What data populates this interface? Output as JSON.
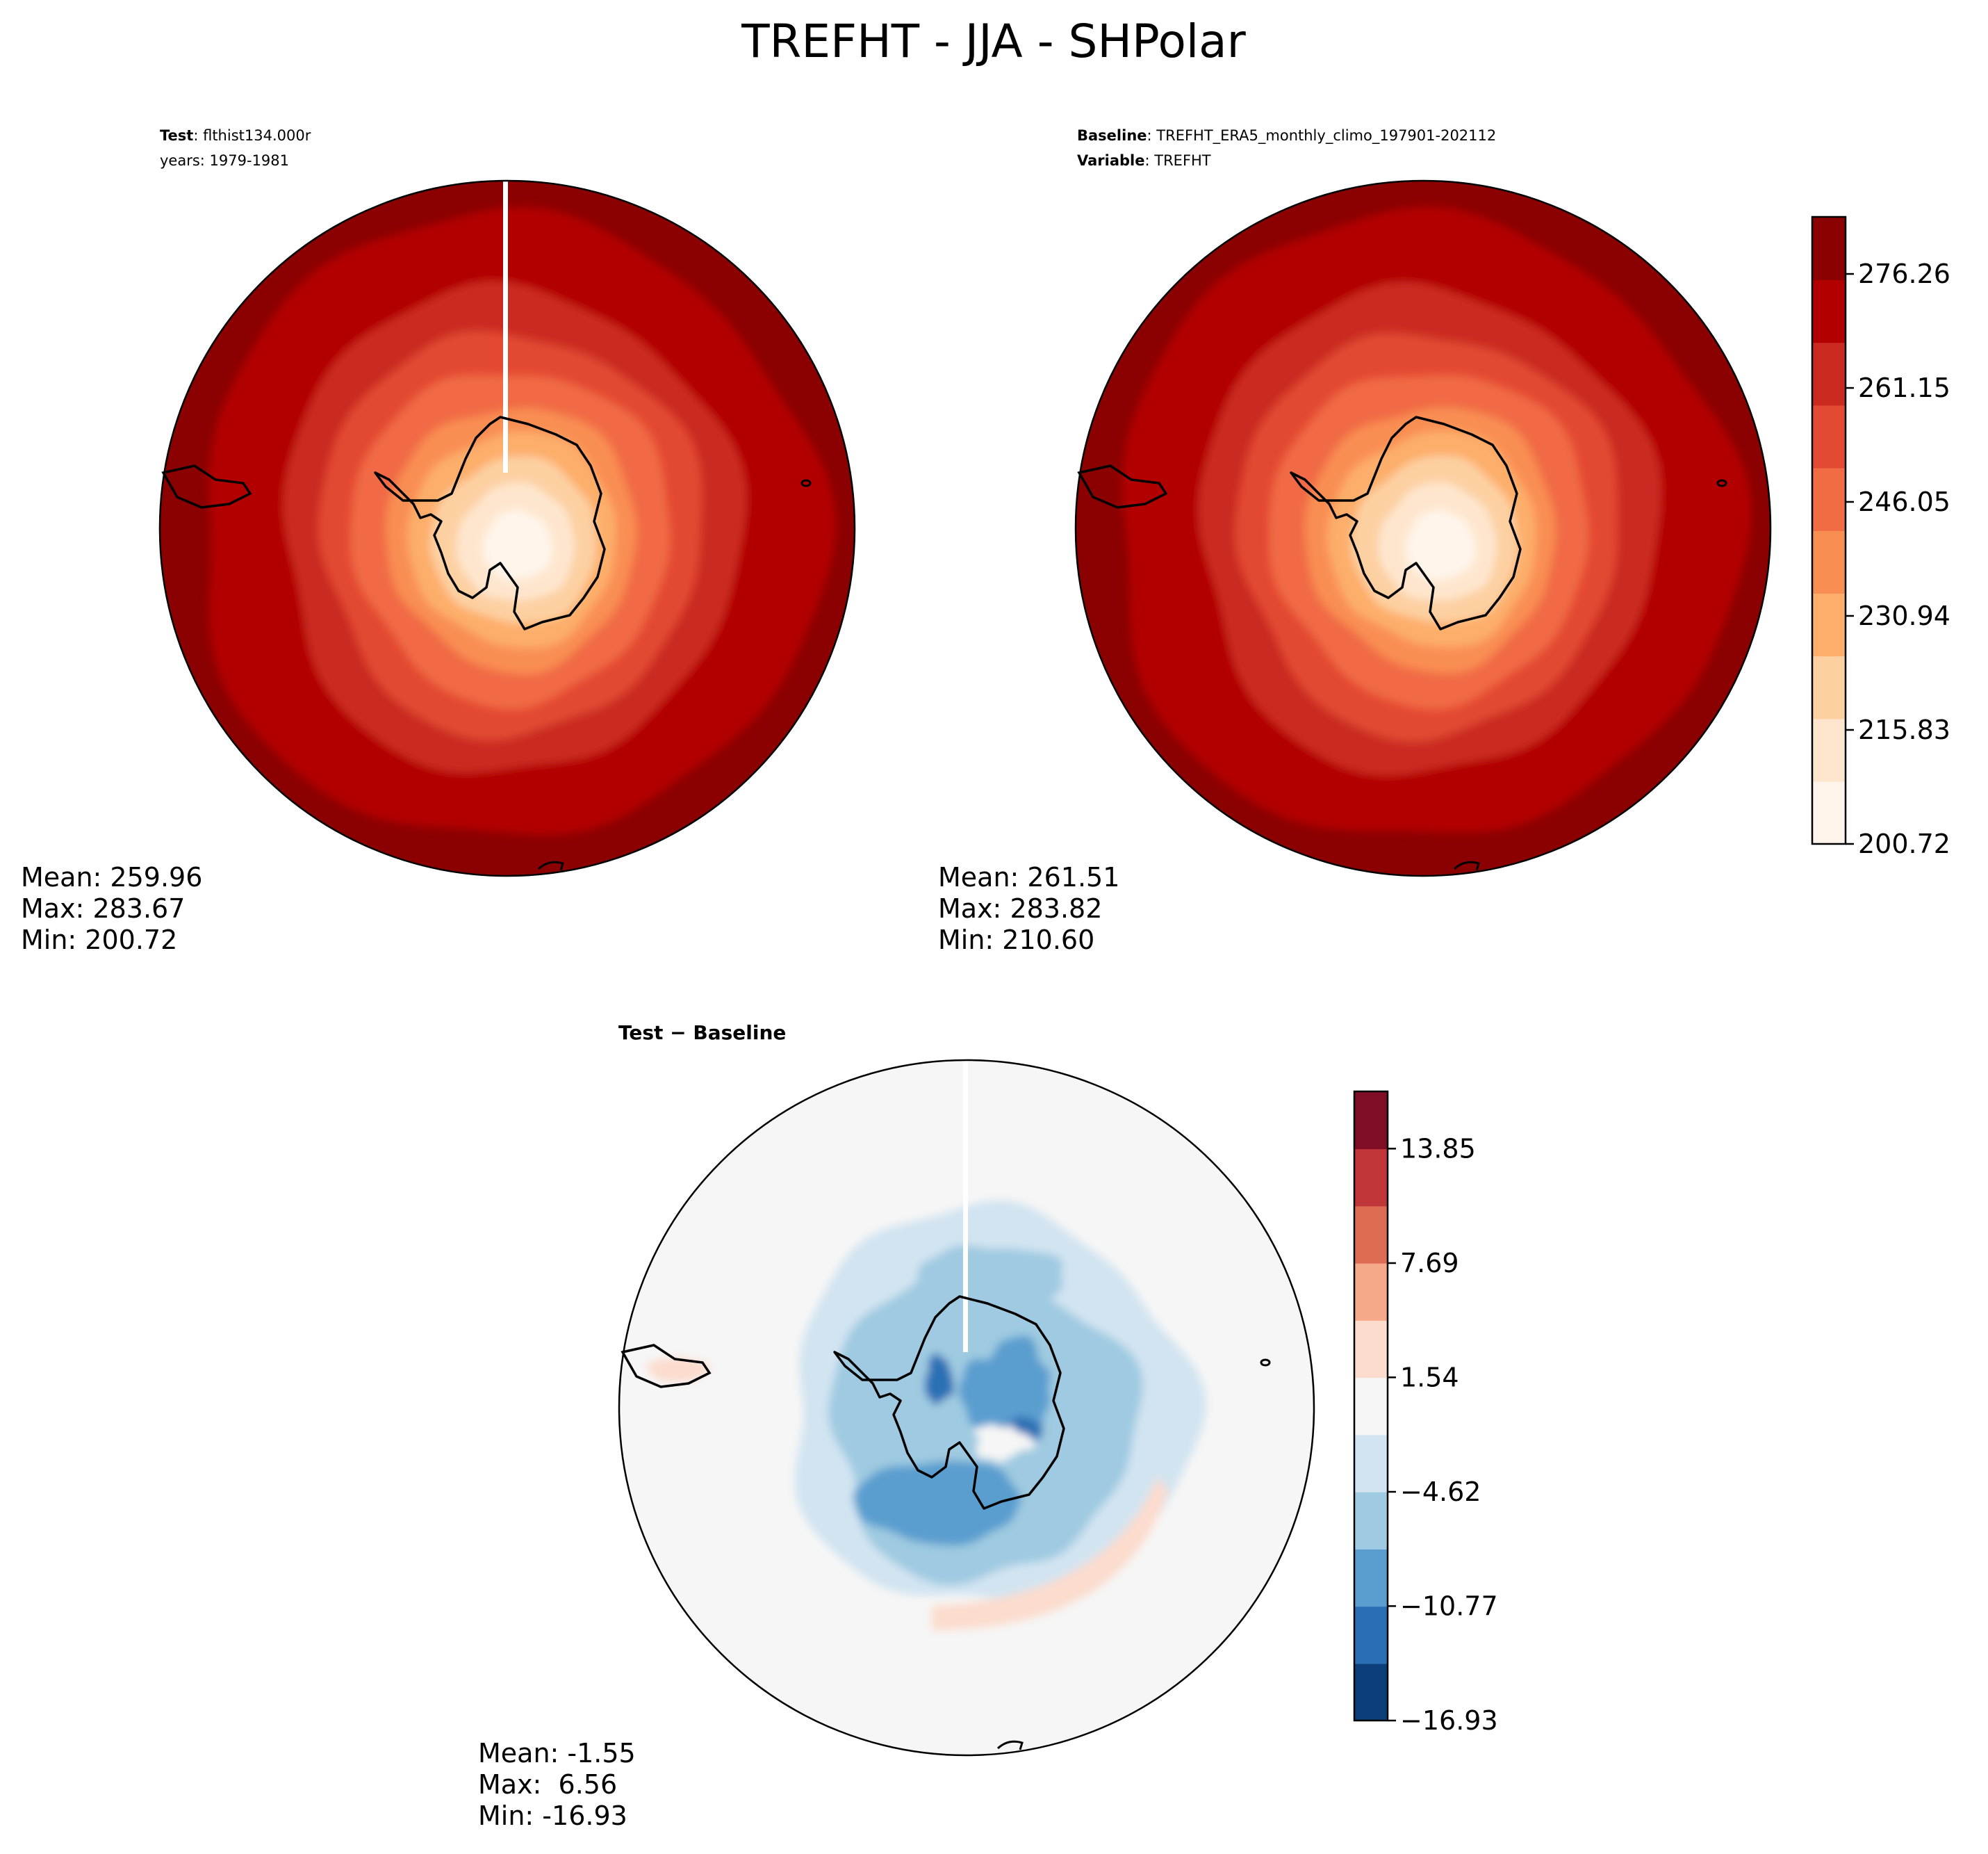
{
  "figure": {
    "title": "TREFHT - JJA - SHPolar"
  },
  "panels": {
    "test": {
      "label_bold": "Test",
      "label_sep": ": ",
      "label_value": "flthist134.000r",
      "subline": "years: 1979-1981",
      "stats": [
        "Mean: 259.96",
        "Max: 283.67",
        "Min: 200.72"
      ]
    },
    "baseline": {
      "label_bold": "Baseline",
      "label_sep": ": ",
      "label_value": "TREFHT_ERA5_monthly_climo_197901-202112",
      "subline_bold": "Variable",
      "subline_sep": ": ",
      "subline_value": "TREFHT",
      "stats": [
        "Mean: 261.51",
        "Max: 283.82",
        "Min: 210.60"
      ]
    },
    "diff": {
      "label": "Test − Baseline",
      "stats": [
        "Mean: -1.55",
        "Max:  6.56",
        "Min: -16.93"
      ]
    }
  },
  "colors": {
    "reds": [
      "#fff5eb",
      "#fee6ce",
      "#fdd0a2",
      "#fdae6b",
      "#f98e52",
      "#f16b45",
      "#e34a33",
      "#cb2a20",
      "#b20000",
      "#8b0000"
    ],
    "diverging": [
      "#0c3f7a",
      "#2a6fb5",
      "#5a9ecf",
      "#9fcae1",
      "#d2e4f1",
      "#f6f6f6",
      "#fcdccd",
      "#f5a988",
      "#de6c54",
      "#c13639",
      "#7f0d25"
    ],
    "land_outline": "#000000"
  },
  "chart_data": [
    {
      "type": "heatmap",
      "name": "test",
      "projection": "south-polar-stereographic",
      "colormap": "reds",
      "colorbar": "shared-with-baseline"
    },
    {
      "type": "heatmap",
      "name": "baseline",
      "projection": "south-polar-stereographic",
      "colormap": "reds",
      "colorbar": {
        "range": [
          200.72,
          283.82
        ],
        "ticks": [
          "276.26",
          "261.15",
          "246.05",
          "230.94",
          "215.83",
          "200.72"
        ],
        "tick_values": [
          276.26,
          261.15,
          246.05,
          230.94,
          215.83,
          200.72
        ],
        "levels": 10
      }
    },
    {
      "type": "heatmap",
      "name": "difference",
      "projection": "south-polar-stereographic",
      "colormap": "diverging",
      "colorbar": {
        "range": [
          -16.93,
          16.93
        ],
        "ticks": [
          "13.85",
          "7.69",
          "1.54",
          "−4.62",
          "−10.77",
          "−16.93"
        ],
        "tick_values": [
          13.85,
          7.69,
          1.54,
          -4.62,
          -10.77,
          -16.93
        ],
        "levels": 11
      }
    }
  ]
}
